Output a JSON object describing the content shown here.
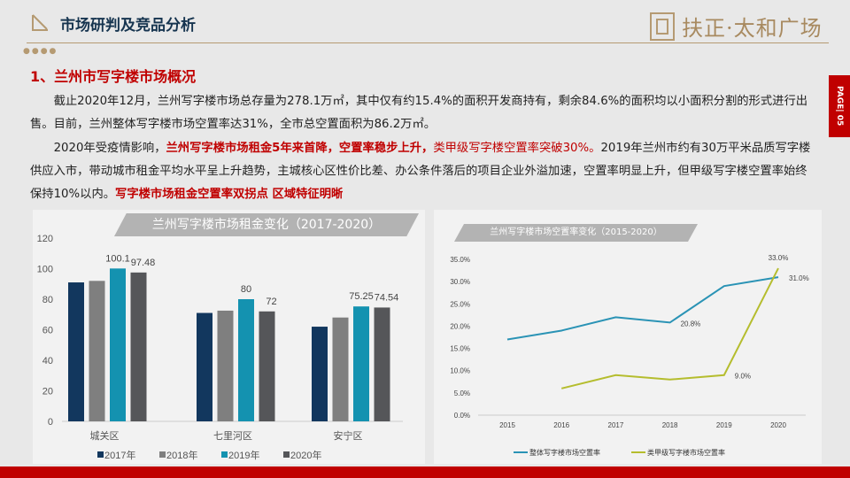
{
  "header": {
    "title": "市场研判及竞品分析",
    "logo_text": "扶正·太和广场",
    "page_label": "PAGE| 05"
  },
  "section": {
    "title": "1、兰州市写字楼市场概况"
  },
  "paragraph1": "截止2020年12月，兰州写字楼市场总存量为278.1万㎡，其中仅有约15.4%的面积开发商持有，剩余84.6%的面积均以小面积分割的形式进行出售。目前，兰州整体写字楼市场空置率达31%，全市总空置面积为86.2万㎡。",
  "paragraph2": {
    "p1": "2020年受疫情影响，",
    "h1": "兰州写字楼市场租金5年来首降，空置率稳步上升，",
    "h2": "类甲级写字楼空置率突破30%。",
    "p2": "2019年兰州市约有30万平米品质写字楼供应入市，带动城市租金平均水平呈上升趋势，主城核心区性价比差、办公条件落后的项目企业外溢加速，空置率明显上升，但甲级写字楼空置率始终保持10%以内。",
    "h3": "写字楼市场租金空置率双拐点 区域特征明晰"
  },
  "chart_data": [
    {
      "type": "bar",
      "title": "兰州写字楼市场租金变化（2017-2020）",
      "categories": [
        "城关区",
        "七里河区",
        "安宁区"
      ],
      "ylim": [
        0,
        120
      ],
      "yticks": [
        0,
        20,
        40,
        60,
        80,
        100,
        120
      ],
      "legend": "bottom",
      "series": [
        {
          "name": "2017年",
          "color": "#12375e",
          "values": [
            91,
            71,
            62
          ]
        },
        {
          "name": "2018年",
          "color": "#7f7f7f",
          "values": [
            92,
            72.5,
            68
          ]
        },
        {
          "name": "2019年",
          "color": "#1492b0",
          "values": [
            100.1,
            80,
            75.25
          ]
        },
        {
          "name": "2020年",
          "color": "#555659",
          "values": [
            97.48,
            72,
            74.54
          ]
        }
      ],
      "data_labels": {
        "城关区": [
          "100.1",
          "97.48"
        ],
        "七里河区": [
          "80",
          "72"
        ],
        "安宁区": [
          "75.25",
          "74.54"
        ]
      }
    },
    {
      "type": "line",
      "title": "兰州写字楼市场空置率变化（2015-2020）",
      "x": [
        "2015",
        "2016",
        "2017",
        "2018",
        "2019",
        "2020"
      ],
      "ylim": [
        0,
        35
      ],
      "yticks": [
        "0.0%",
        "5.0%",
        "10.0%",
        "15.0%",
        "20.0%",
        "25.0%",
        "30.0%",
        "35.0%"
      ],
      "legend": "bottom",
      "series": [
        {
          "name": "整体写字楼市场空置率",
          "color": "#2a93b5",
          "values": [
            17.0,
            19.0,
            22.0,
            20.8,
            29.0,
            31.0
          ],
          "labels": {
            "3": "20.8%",
            "5": "31.0%"
          }
        },
        {
          "name": "类甲级写字楼市场空置率",
          "color": "#b5bd2e",
          "values": [
            null,
            6.0,
            9.0,
            8.0,
            9.0,
            33.0
          ],
          "labels": {
            "4": "9.0%",
            "5": "33.0%"
          }
        }
      ]
    }
  ]
}
